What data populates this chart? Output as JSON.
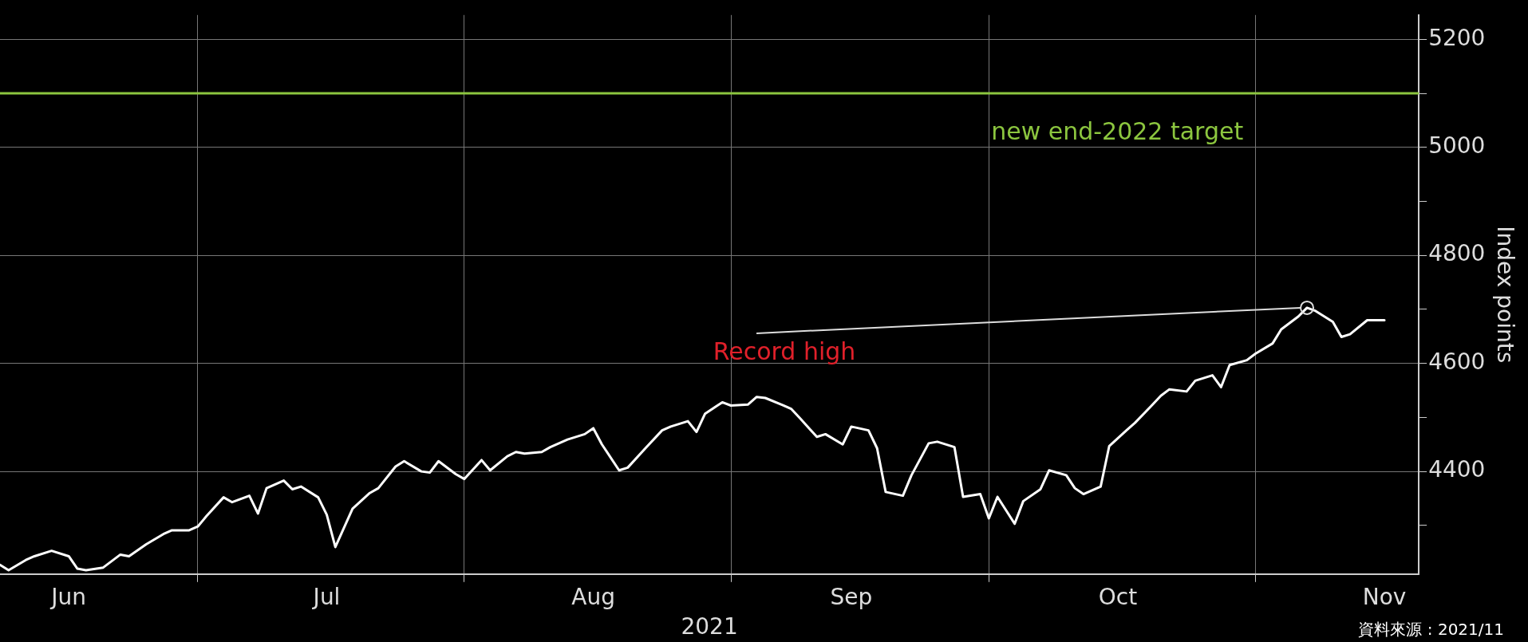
{
  "chart_data": {
    "type": "line",
    "xlabel": "2021",
    "ylabel": "Index points",
    "x": [
      "2021-06-08",
      "2021-06-09",
      "2021-06-11",
      "2021-06-12",
      "2021-06-14",
      "2021-06-16",
      "2021-06-17",
      "2021-06-18",
      "2021-06-20",
      "2021-06-22",
      "2021-06-23",
      "2021-06-25",
      "2021-06-27",
      "2021-06-28",
      "2021-06-30",
      "2021-07-01",
      "2021-07-02",
      "2021-07-04",
      "2021-07-05",
      "2021-07-07",
      "2021-07-08",
      "2021-07-09",
      "2021-07-11",
      "2021-07-12",
      "2021-07-13",
      "2021-07-15",
      "2021-07-16",
      "2021-07-17",
      "2021-07-19",
      "2021-07-21",
      "2021-07-22",
      "2021-07-24",
      "2021-07-25",
      "2021-07-27",
      "2021-07-28",
      "2021-07-29",
      "2021-07-31",
      "2021-08-01",
      "2021-08-03",
      "2021-08-04",
      "2021-08-06",
      "2021-08-07",
      "2021-08-08",
      "2021-08-10",
      "2021-08-11",
      "2021-08-13",
      "2021-08-15",
      "2021-08-16",
      "2021-08-17",
      "2021-08-19",
      "2021-08-20",
      "2021-08-22",
      "2021-08-24",
      "2021-08-25",
      "2021-08-27",
      "2021-08-28",
      "2021-08-29",
      "2021-08-31",
      "2021-09-01",
      "2021-09-03",
      "2021-09-04",
      "2021-09-05",
      "2021-09-07",
      "2021-09-08",
      "2021-09-09",
      "2021-09-11",
      "2021-09-12",
      "2021-09-14",
      "2021-09-15",
      "2021-09-17",
      "2021-09-18",
      "2021-09-19",
      "2021-09-21",
      "2021-09-22",
      "2021-09-24",
      "2021-09-25",
      "2021-09-27",
      "2021-09-28",
      "2021-09-30",
      "2021-10-01",
      "2021-10-02",
      "2021-10-04",
      "2021-10-05",
      "2021-10-07",
      "2021-10-08",
      "2021-10-10",
      "2021-10-11",
      "2021-10-12",
      "2021-10-14",
      "2021-10-15",
      "2021-10-17",
      "2021-10-18",
      "2021-10-20",
      "2021-10-21",
      "2021-10-22",
      "2021-10-24",
      "2021-10-25",
      "2021-10-27",
      "2021-10-28",
      "2021-10-29",
      "2021-10-31",
      "2021-11-01",
      "2021-11-03",
      "2021-11-04",
      "2021-11-06",
      "2021-11-07",
      "2021-11-08",
      "2021-11-10",
      "2021-11-11",
      "2021-11-12",
      "2021-11-14",
      "2021-11-15",
      "2021-11-16"
    ],
    "series": [
      {
        "color": "#ffffff",
        "values": [
          4227,
          4217,
          4236,
          4243,
          4253,
          4243,
          4220,
          4217,
          4222,
          4246,
          4243,
          4265,
          4284,
          4291,
          4291,
          4298,
          4317,
          4352,
          4343,
          4355,
          4322,
          4369,
          4383,
          4367,
          4372,
          4352,
          4320,
          4260,
          4331,
          4360,
          4369,
          4409,
          4419,
          4400,
          4398,
          4419,
          4395,
          4386,
          4421,
          4402,
          4428,
          4436,
          4433,
          4436,
          4445,
          4459,
          4469,
          4480,
          4450,
          4402,
          4407,
          4442,
          4476,
          4483,
          4493,
          4473,
          4507,
          4528,
          4522,
          4524,
          4538,
          4536,
          4523,
          4516,
          4499,
          4464,
          4469,
          4450,
          4483,
          4476,
          4443,
          4362,
          4355,
          4393,
          4452,
          4455,
          4445,
          4353,
          4358,
          4313,
          4353,
          4303,
          4345,
          4367,
          4402,
          4393,
          4369,
          4358,
          4372,
          4447,
          4476,
          4490,
          4523,
          4540,
          4552,
          4548,
          4568,
          4578,
          4556,
          4597,
          4606,
          4618,
          4637,
          4663,
          4687,
          4703,
          4697,
          4677,
          4649,
          4654,
          4680,
          4680,
          4680
        ]
      }
    ],
    "xlim": [
      "2021-06-08",
      "2021-11-20"
    ],
    "xticks": [
      {
        "value": "2021-06-16",
        "label": "Jun"
      },
      {
        "value": "2021-07-01",
        "label": null
      },
      {
        "value": "2021-07-16",
        "label": "Jul"
      },
      {
        "value": "2021-08-01",
        "label": null
      },
      {
        "value": "2021-08-16",
        "label": "Aug"
      },
      {
        "value": "2021-09-01",
        "label": null
      },
      {
        "value": "2021-09-15",
        "label": "Sep"
      },
      {
        "value": "2021-10-01",
        "label": null
      },
      {
        "value": "2021-10-16",
        "label": "Oct"
      },
      {
        "value": "2021-11-01",
        "label": null
      },
      {
        "value": "2021-11-16",
        "label": "Nov"
      }
    ],
    "ylim": [
      4210,
      5245
    ],
    "yticks": [
      {
        "value": 4300,
        "label": null
      },
      4400,
      {
        "value": 4500,
        "label": null
      },
      4600,
      {
        "value": 4700,
        "label": null
      },
      4800,
      {
        "value": 4900,
        "label": null
      },
      5000,
      {
        "value": 5100,
        "label": null
      },
      5200
    ],
    "grid": true,
    "line_style": "solid",
    "marker": "none",
    "ref_lines": [
      {
        "axis": "y",
        "value": 5100,
        "label": "new end-2022 target",
        "color": "#8cc63f"
      }
    ],
    "annotations": [
      {
        "text": "Record high",
        "x": "2021-11-07",
        "y": 4703
      },
      "資料來源 : 2021/11"
    ]
  }
}
